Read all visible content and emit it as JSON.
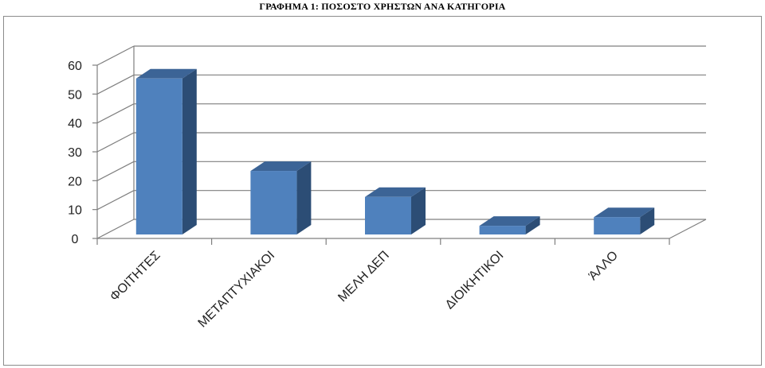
{
  "chart_data": {
    "type": "bar",
    "title": "ΓΡΑΦΗΜΑ 1: ΠΟΣΟΣΤΟ ΧΡΗΣΤΩΝ ΑΝΑ ΚΑΤΗΓΟΡΙΑ",
    "categories": [
      "ΦΟΙΤΗΤΕΣ",
      "ΜΕΤΑΠΤΥΧΙΑΚΟΙ",
      "ΜΕΛΗ ΔΕΠ",
      "ΔΙΟΙΚΗΤΙΚΟΙ",
      "ΆΛΛΟ"
    ],
    "values": [
      54,
      22,
      13,
      3,
      6
    ],
    "yticks": [
      "0",
      "10",
      "20",
      "30",
      "40",
      "50",
      "60"
    ],
    "ylim": [
      0,
      60
    ],
    "grid": true,
    "legend": "none",
    "style": "3d-column",
    "colors": {
      "bar_front": "#4f81bd",
      "bar_top": "#3c6496",
      "bar_side": "#2c4d75",
      "grid": "#7f7f7f"
    }
  }
}
